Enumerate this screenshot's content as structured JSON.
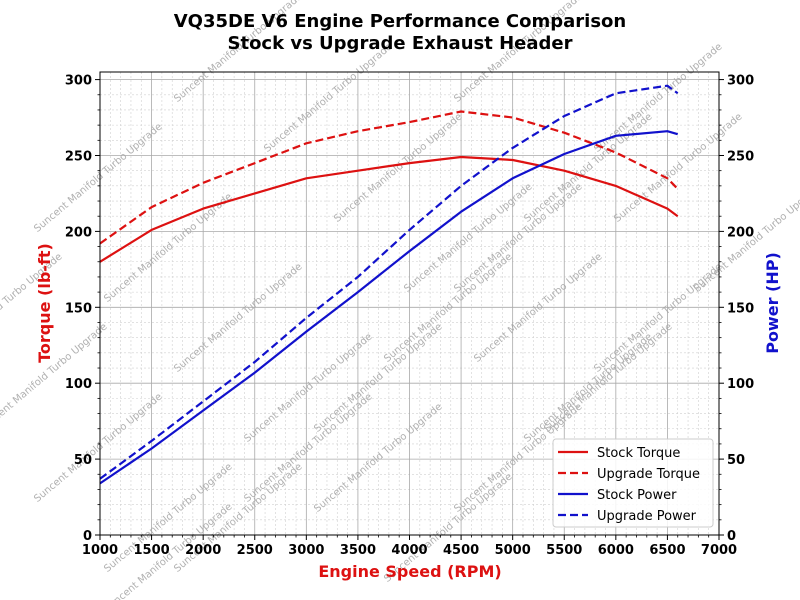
{
  "chart_data": {
    "type": "line",
    "title": "VQ35DE V6 Engine Performance Comparison",
    "subtitle": "Stock vs Upgrade Exhaust Header",
    "xlabel": "Engine Speed (RPM)",
    "ylabel_left": "Torque (lb-ft)",
    "ylabel_right": "Power (HP)",
    "xlim": [
      1000,
      7000
    ],
    "ylim_left": [
      0,
      305
    ],
    "ylim_right": [
      0,
      305
    ],
    "x_ticks": [
      1000,
      1500,
      2000,
      2500,
      3000,
      3500,
      4000,
      4500,
      5000,
      5500,
      6000,
      6500,
      7000
    ],
    "y_ticks_left": [
      0,
      50,
      100,
      150,
      200,
      250,
      300
    ],
    "y_ticks_right": [
      0,
      50,
      100,
      150,
      200,
      250,
      300
    ],
    "grid": true,
    "minor_grid": true,
    "legend_position": "lower-right",
    "watermark": "Suncent Manifold Turbo Upgrade",
    "colors": {
      "torque": "#dd1111",
      "power": "#1111cc",
      "grid_major": "#a9a9a9",
      "grid_minor": "#d0d0d0"
    },
    "series": [
      {
        "name": "Stock Torque",
        "axis": "left",
        "style": "solid",
        "color": "#dd1111",
        "x": [
          1000,
          1500,
          2000,
          2500,
          3000,
          3500,
          4000,
          4500,
          5000,
          5500,
          6000,
          6500,
          6600
        ],
        "values": [
          180,
          201,
          215,
          225,
          235,
          240,
          245,
          249,
          247,
          240,
          230,
          215,
          210
        ]
      },
      {
        "name": "Upgrade Torque",
        "axis": "left",
        "style": "dashed",
        "color": "#dd1111",
        "x": [
          1000,
          1500,
          2000,
          2500,
          3000,
          3500,
          4000,
          4500,
          5000,
          5500,
          6000,
          6500,
          6600
        ],
        "values": [
          192,
          216,
          232,
          245,
          258,
          266,
          272,
          279,
          275,
          265,
          252,
          235,
          228
        ]
      },
      {
        "name": "Stock Power",
        "axis": "right",
        "style": "solid",
        "color": "#1111cc",
        "x": [
          1000,
          1500,
          2000,
          2500,
          3000,
          3500,
          4000,
          4500,
          5000,
          5500,
          6000,
          6500,
          6600
        ],
        "values": [
          34,
          57,
          82,
          107,
          134,
          160,
          187,
          213,
          235,
          251,
          263,
          266,
          264
        ]
      },
      {
        "name": "Upgrade Power",
        "axis": "right",
        "style": "dashed",
        "color": "#1111cc",
        "x": [
          1000,
          1500,
          2000,
          2500,
          3000,
          3500,
          4000,
          4500,
          5000,
          5500,
          6000,
          6500,
          6600
        ],
        "values": [
          37,
          62,
          88,
          114,
          143,
          170,
          201,
          230,
          255,
          276,
          291,
          296,
          291
        ]
      }
    ]
  }
}
